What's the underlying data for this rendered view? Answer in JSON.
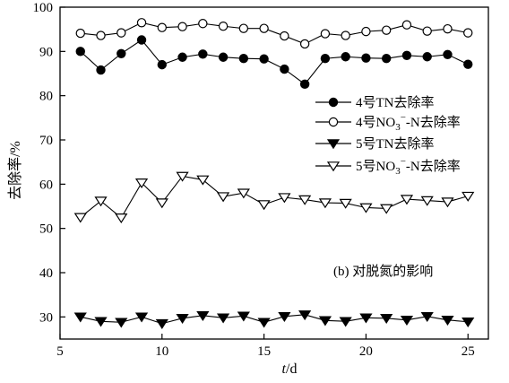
{
  "chart_data": {
    "type": "line",
    "xlabel_var": "t",
    "xlabel_unit": "/d",
    "ylabel": "去除率/%",
    "xlim": [
      5,
      26
    ],
    "ylim": [
      25,
      100
    ],
    "xticks": [
      5,
      10,
      15,
      20,
      25
    ],
    "yticks": [
      30,
      40,
      50,
      60,
      70,
      80,
      90,
      100
    ],
    "annotation": "(b) 对脱氮的影响",
    "legend_position": "right",
    "x": [
      6,
      7,
      8,
      9,
      10,
      11,
      12,
      13,
      14,
      15,
      16,
      17,
      18,
      19,
      20,
      21,
      22,
      23,
      24,
      25
    ],
    "series": [
      {
        "name": "4号TN去除率",
        "marker": "filled-circle",
        "values": [
          90.0,
          85.8,
          89.5,
          92.6,
          87.0,
          88.7,
          89.4,
          88.7,
          88.4,
          88.3,
          86.0,
          82.6,
          88.4,
          88.8,
          88.5,
          88.4,
          89.1,
          88.8,
          89.3,
          87.1
        ]
      },
      {
        "name": "4号NO₃⁻-N去除率",
        "marker": "open-circle",
        "values": [
          94.1,
          93.6,
          94.2,
          96.5,
          95.4,
          95.6,
          96.3,
          95.7,
          95.2,
          95.2,
          93.5,
          91.7,
          94.0,
          93.6,
          94.5,
          94.8,
          96.0,
          94.6,
          95.1,
          94.2
        ]
      },
      {
        "name": "5号TN去除率",
        "marker": "filled-triangle-down",
        "values": [
          30.0,
          29.0,
          28.8,
          30.0,
          28.5,
          29.7,
          30.3,
          29.8,
          30.2,
          28.8,
          30.1,
          30.5,
          29.2,
          29.0,
          29.8,
          29.7,
          29.3,
          30.1,
          29.3,
          28.9
        ]
      },
      {
        "name": "5号NO₃⁻-N去除率",
        "marker": "open-triangle-down",
        "values": [
          52.5,
          56.2,
          52.4,
          60.3,
          55.8,
          61.8,
          61.0,
          57.2,
          58.0,
          55.4,
          57.0,
          56.5,
          55.8,
          55.7,
          54.7,
          54.5,
          56.6,
          56.3,
          56.0,
          57.3
        ]
      }
    ]
  },
  "legend_entries": [
    {
      "prefix": "4号",
      "main": "TN去除率",
      "sub": "",
      "sup": "",
      "suffix": ""
    },
    {
      "prefix": "4号",
      "main": "NO",
      "sub": "3",
      "sup": "−",
      "suffix": "-N去除率"
    },
    {
      "prefix": "5号",
      "main": "TN去除率",
      "sub": "",
      "sup": "",
      "suffix": ""
    },
    {
      "prefix": "5号",
      "main": "NO",
      "sub": "3",
      "sup": "−",
      "suffix": "-N去除率"
    }
  ]
}
